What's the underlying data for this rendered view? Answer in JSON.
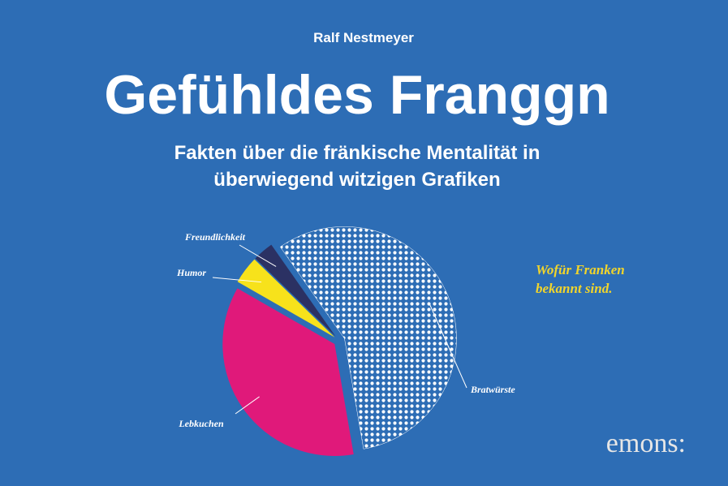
{
  "author": "Ralf Nestmeyer",
  "title": "Gefühldes Franggn",
  "subtitle": [
    "Fakten über die fränkische Mentalität in",
    "überwiegend witzigen Grafiken"
  ],
  "publisher": "emons:",
  "chart_data": {
    "type": "pie",
    "annotation": [
      "Wofür Franken",
      "bekannt sind."
    ],
    "categories": [
      "Bratwürste",
      "Lebkuchen",
      "Humor",
      "Freundlichkeit"
    ],
    "values": [
      57,
      36,
      4,
      3
    ],
    "colors": [
      "#ffffff",
      "#e0197a",
      "#f7e21b",
      "#2b3163"
    ],
    "startangle": -35
  }
}
